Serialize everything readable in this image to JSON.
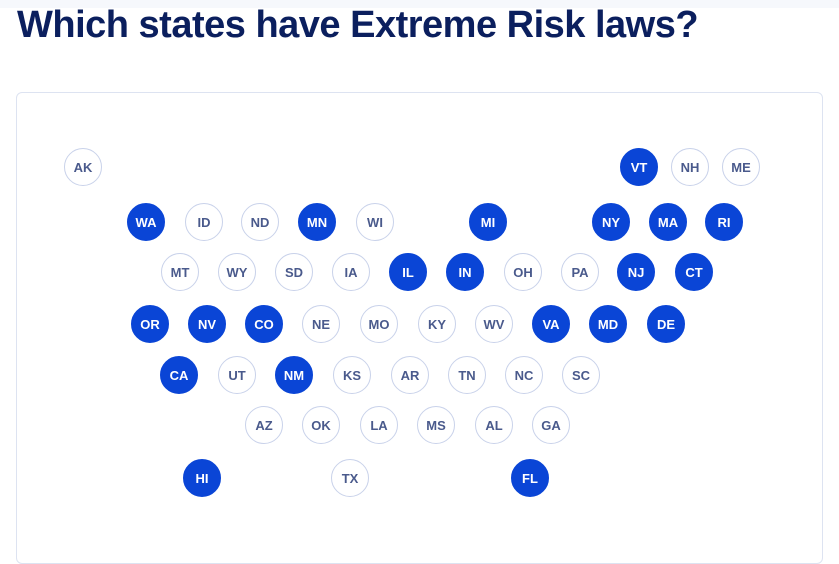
{
  "title": "Which states have Extreme Risk laws?",
  "colors": {
    "active": "#0a45d6",
    "inactive_text": "#4a5a8c",
    "title": "#0b1f5e"
  },
  "states": [
    {
      "code": "AK",
      "has_law": false
    },
    {
      "code": "VT",
      "has_law": true
    },
    {
      "code": "NH",
      "has_law": false
    },
    {
      "code": "ME",
      "has_law": false
    },
    {
      "code": "WA",
      "has_law": true
    },
    {
      "code": "ID",
      "has_law": false
    },
    {
      "code": "ND",
      "has_law": false
    },
    {
      "code": "MN",
      "has_law": true
    },
    {
      "code": "WI",
      "has_law": false
    },
    {
      "code": "MI",
      "has_law": true
    },
    {
      "code": "NY",
      "has_law": true
    },
    {
      "code": "MA",
      "has_law": true
    },
    {
      "code": "RI",
      "has_law": true
    },
    {
      "code": "MT",
      "has_law": false
    },
    {
      "code": "WY",
      "has_law": false
    },
    {
      "code": "SD",
      "has_law": false
    },
    {
      "code": "IA",
      "has_law": false
    },
    {
      "code": "IL",
      "has_law": true
    },
    {
      "code": "IN",
      "has_law": true
    },
    {
      "code": "OH",
      "has_law": false
    },
    {
      "code": "PA",
      "has_law": false
    },
    {
      "code": "NJ",
      "has_law": true
    },
    {
      "code": "CT",
      "has_law": true
    },
    {
      "code": "OR",
      "has_law": true
    },
    {
      "code": "NV",
      "has_law": true
    },
    {
      "code": "CO",
      "has_law": true
    },
    {
      "code": "NE",
      "has_law": false
    },
    {
      "code": "MO",
      "has_law": false
    },
    {
      "code": "KY",
      "has_law": false
    },
    {
      "code": "WV",
      "has_law": false
    },
    {
      "code": "VA",
      "has_law": true
    },
    {
      "code": "MD",
      "has_law": true
    },
    {
      "code": "DE",
      "has_law": true
    },
    {
      "code": "CA",
      "has_law": true
    },
    {
      "code": "UT",
      "has_law": false
    },
    {
      "code": "NM",
      "has_law": true
    },
    {
      "code": "KS",
      "has_law": false
    },
    {
      "code": "AR",
      "has_law": false
    },
    {
      "code": "TN",
      "has_law": false
    },
    {
      "code": "NC",
      "has_law": false
    },
    {
      "code": "SC",
      "has_law": false
    },
    {
      "code": "AZ",
      "has_law": false
    },
    {
      "code": "OK",
      "has_law": false
    },
    {
      "code": "LA",
      "has_law": false
    },
    {
      "code": "MS",
      "has_law": false
    },
    {
      "code": "AL",
      "has_law": false
    },
    {
      "code": "GA",
      "has_law": false
    },
    {
      "code": "HI",
      "has_law": true
    },
    {
      "code": "TX",
      "has_law": false
    },
    {
      "code": "FL",
      "has_law": true
    }
  ]
}
